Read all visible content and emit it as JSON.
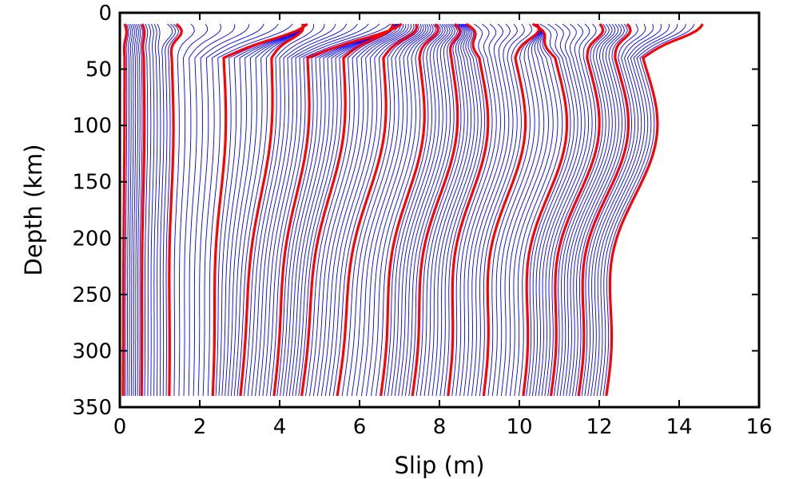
{
  "chart_data": {
    "type": "line",
    "title": "",
    "xlabel": "Slip (m)",
    "ylabel": "Depth (km)",
    "xlim": [
      0,
      16
    ],
    "ylim": [
      350,
      0
    ],
    "y_inverted": true,
    "grid": false,
    "legend": "none",
    "x_ticks": [
      "0",
      "2",
      "4",
      "6",
      "8",
      "10",
      "12",
      "14",
      "16"
    ],
    "y_ticks": [
      "0",
      "50",
      "100",
      "150",
      "200",
      "250",
      "300",
      "350"
    ],
    "depth_range": [
      10,
      342
    ],
    "colors": {
      "fine_curves": "#0000ff",
      "highlight_curves": "#ff0000",
      "frame": "#000000"
    },
    "highlighted_profiles": [
      {
        "surface_slip": 0.05,
        "mid_slip": 0.12,
        "base_slip": 0.08
      },
      {
        "surface_slip": 0.5,
        "mid_slip": 0.6,
        "base_slip": 0.55
      },
      {
        "surface_slip": 1.2,
        "mid_slip": 1.3,
        "base_slip": 1.25
      },
      {
        "surface_slip": 4.5,
        "mid_slip": 2.6,
        "base_slip": 2.35
      },
      {
        "surface_slip": 4.4,
        "mid_slip": 3.8,
        "base_slip": 3.05
      },
      {
        "surface_slip": 6.9,
        "mid_slip": 4.7,
        "base_slip": 3.9
      },
      {
        "surface_slip": 6.7,
        "mid_slip": 5.6,
        "base_slip": 4.6
      },
      {
        "surface_slip": 7.3,
        "mid_slip": 6.6,
        "base_slip": 5.5
      },
      {
        "surface_slip": 7.8,
        "mid_slip": 7.5,
        "base_slip": 6.6
      },
      {
        "surface_slip": 8.3,
        "mid_slip": 8.3,
        "base_slip": 7.4
      },
      {
        "surface_slip": 8.6,
        "mid_slip": 9.0,
        "base_slip": 8.3
      },
      {
        "surface_slip": 10.4,
        "mid_slip": 9.9,
        "base_slip": 9.2
      },
      {
        "surface_slip": 10.3,
        "mid_slip": 10.9,
        "base_slip": 10.2
      },
      {
        "surface_slip": 12.0,
        "mid_slip": 11.7,
        "base_slip": 10.9
      },
      {
        "surface_slip": 12.7,
        "mid_slip": 12.4,
        "base_slip": 11.6
      },
      {
        "surface_slip": 14.6,
        "mid_slip": 13.1,
        "base_slip": 12.3
      }
    ]
  }
}
